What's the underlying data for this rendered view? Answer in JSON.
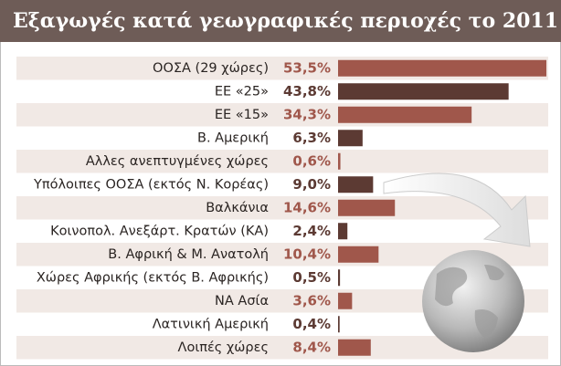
{
  "chart_data": {
    "type": "bar",
    "orientation": "horizontal",
    "title": "Εξαγωγές κατά γεωγραφικές περιοχές το 2011",
    "categories": [
      "ΟΟΣΑ (29 χώρες)",
      "ΕΕ «25»",
      "ΕΕ «15»",
      "Β. Αμερική",
      "Αλλες ανεπτυγμένες χώρες",
      "Υπόλοιπες ΟΟΣΑ (εκτός Ν. Κορέας)",
      "Βαλκάνια",
      "Κοινοπολ. Ανεξάρτ. Κρατών (ΚΑ)",
      "Β. Αφρική & Μ. Ανατολή",
      "Χώρες Αφρικής (εκτός Β. Αφρικής)",
      "ΝΑ Ασία",
      "Λατινική Αμερική",
      "Λοιπές χώρες"
    ],
    "values": [
      53.5,
      43.8,
      34.3,
      6.3,
      0.6,
      9.0,
      14.6,
      2.4,
      10.4,
      0.5,
      3.6,
      0.4,
      8.4
    ],
    "value_labels": [
      "53,5%",
      "43,8%",
      "34,3%",
      "6,3%",
      "0,6%",
      "9,0%",
      "14,6%",
      "2,4%",
      "10,4%",
      "0,5%",
      "3,6%",
      "0,4%",
      "8,4%"
    ],
    "colors": [
      "#a0574b",
      "#5c3a33"
    ]
  }
}
